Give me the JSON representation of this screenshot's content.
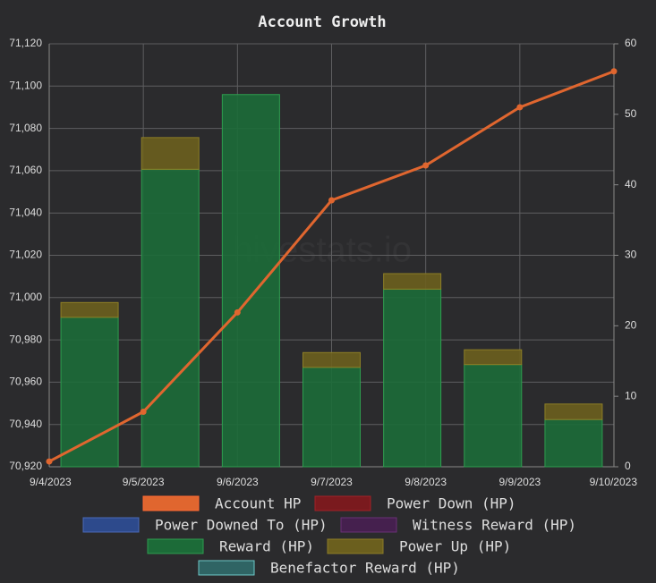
{
  "chart_data": {
    "type": "bar-line",
    "title": "Account Growth",
    "watermark": "hivestats.io",
    "categories": [
      "9/4/2023",
      "9/5/2023",
      "9/6/2023",
      "9/7/2023",
      "9/8/2023",
      "9/9/2023",
      "9/10/2023"
    ],
    "ylim": [
      70920,
      71120
    ],
    "yticks": [
      {
        "value": 70920,
        "label": "70,920"
      },
      {
        "value": 70940,
        "label": "70,940"
      },
      {
        "value": 70960,
        "label": "70,960"
      },
      {
        "value": 70980,
        "label": "70,980"
      },
      {
        "value": 71000,
        "label": "71,000"
      },
      {
        "value": 71020,
        "label": "71,020"
      },
      {
        "value": 71040,
        "label": "71,040"
      },
      {
        "value": 71060,
        "label": "71,060"
      },
      {
        "value": 71080,
        "label": "71,080"
      },
      {
        "value": 71100,
        "label": "71,100"
      },
      {
        "value": 71120,
        "label": "71,120"
      }
    ],
    "y2lim": [
      0,
      60
    ],
    "y2ticks": [
      0,
      10,
      20,
      30,
      40,
      50,
      60
    ],
    "grid": true,
    "series": [
      {
        "name": "Account HP",
        "type": "line",
        "color": "#e0662f",
        "values": [
          70922.5,
          70946,
          70993,
          71046,
          71062.5,
          71090,
          71107
        ]
      },
      {
        "name": "Power Down (HP)",
        "color": "#7a1a1e"
      },
      {
        "name": "Power Downed To (HP)",
        "color": "#2d4a8c"
      },
      {
        "name": "Witness Reward (HP)",
        "color": "#45204e"
      },
      {
        "name": "Reward (HP)",
        "type": "bar",
        "axis": "y2",
        "color": "#1c6b38",
        "values": [
          21.2,
          42.2,
          52.8,
          14.1,
          25.2,
          14.5,
          6.7
        ]
      },
      {
        "name": "Power Up (HP)",
        "type": "bar",
        "axis": "y2",
        "color": "#6b5f1e",
        "values": [
          2.1,
          4.5,
          0,
          2.1,
          2.2,
          2.1,
          2.2
        ]
      },
      {
        "name": "Benefactor Reward (HP)",
        "color": "#2f6464"
      }
    ]
  }
}
